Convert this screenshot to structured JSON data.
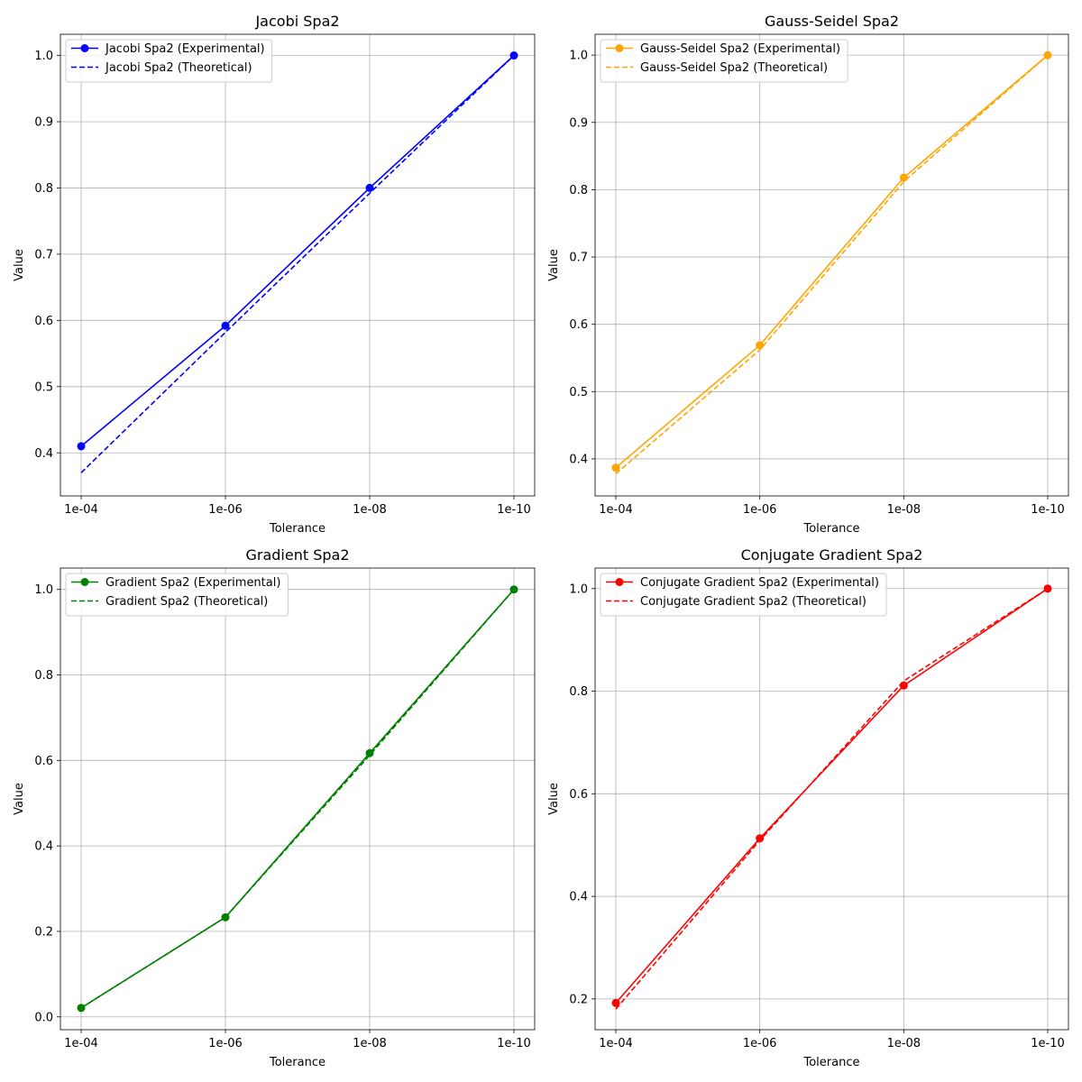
{
  "chart_data": [
    {
      "type": "line",
      "title": "Jacobi Spa2",
      "xlabel": "Tolerance",
      "ylabel": "Value",
      "categories": [
        "1e-04",
        "1e-06",
        "1e-08",
        "1e-10"
      ],
      "ylim": [
        0.335,
        1.032
      ],
      "yticks": [
        0.4,
        0.5,
        0.6,
        0.7,
        0.8,
        0.9,
        1.0
      ],
      "ytick_labels": [
        "0.4",
        "0.5",
        "0.6",
        "0.7",
        "0.8",
        "0.9",
        "1.0"
      ],
      "grid": true,
      "legend": "upper left",
      "color": "#0000ff",
      "series": [
        {
          "name": "Jacobi Spa2 (Experimental)",
          "style": "solid",
          "marker": "circle",
          "values": [
            0.41,
            0.592,
            0.8,
            1.0
          ]
        },
        {
          "name": "Jacobi Spa2 (Theoretical)",
          "style": "dashed",
          "marker": "none",
          "values": [
            0.37,
            0.582,
            0.792,
            1.0
          ]
        }
      ]
    },
    {
      "type": "line",
      "title": "Gauss-Seidel Spa2",
      "xlabel": "Tolerance",
      "ylabel": "Value",
      "categories": [
        "1e-04",
        "1e-06",
        "1e-08",
        "1e-10"
      ],
      "ylim": [
        0.345,
        1.031
      ],
      "yticks": [
        0.4,
        0.5,
        0.6,
        0.7,
        0.8,
        0.9,
        1.0
      ],
      "ytick_labels": [
        "0.4",
        "0.5",
        "0.6",
        "0.7",
        "0.8",
        "0.9",
        "1.0"
      ],
      "grid": true,
      "legend": "upper left",
      "color": "#ffa500",
      "series": [
        {
          "name": "Gauss-Seidel Spa2 (Experimental)",
          "style": "solid",
          "marker": "circle",
          "values": [
            0.387,
            0.569,
            0.818,
            1.0
          ]
        },
        {
          "name": "Gauss-Seidel Spa2 (Theoretical)",
          "style": "dashed",
          "marker": "none",
          "values": [
            0.378,
            0.562,
            0.812,
            1.0
          ]
        }
      ]
    },
    {
      "type": "line",
      "title": "Gradient Spa2",
      "xlabel": "Tolerance",
      "ylabel": "Value",
      "categories": [
        "1e-04",
        "1e-06",
        "1e-08",
        "1e-10"
      ],
      "ylim": [
        -0.03,
        1.05
      ],
      "yticks": [
        0.0,
        0.2,
        0.4,
        0.6,
        0.8,
        1.0
      ],
      "ytick_labels": [
        "0.0",
        "0.2",
        "0.4",
        "0.6",
        "0.8",
        "1.0"
      ],
      "grid": true,
      "legend": "upper left",
      "color": "#008000",
      "series": [
        {
          "name": "Gradient Spa2 (Experimental)",
          "style": "solid",
          "marker": "circle",
          "values": [
            0.021,
            0.233,
            0.617,
            1.0
          ]
        },
        {
          "name": "Gradient Spa2 (Theoretical)",
          "style": "dashed",
          "marker": "none",
          "values": [
            0.021,
            0.233,
            0.612,
            1.0
          ]
        }
      ]
    },
    {
      "type": "line",
      "title": "Conjugate Gradient Spa2",
      "xlabel": "Tolerance",
      "ylabel": "Value",
      "categories": [
        "1e-04",
        "1e-06",
        "1e-08",
        "1e-10"
      ],
      "ylim": [
        0.14,
        1.04
      ],
      "yticks": [
        0.2,
        0.4,
        0.6,
        0.8,
        1.0
      ],
      "ytick_labels": [
        "0.2",
        "0.4",
        "0.6",
        "0.8",
        "1.0"
      ],
      "grid": true,
      "legend": "upper left",
      "color": "#ff0000",
      "series": [
        {
          "name": "Conjugate Gradient Spa2 (Experimental)",
          "style": "solid",
          "marker": "circle",
          "values": [
            0.192,
            0.513,
            0.811,
            1.0
          ]
        },
        {
          "name": "Conjugate Gradient Spa2 (Theoretical)",
          "style": "dashed",
          "marker": "none",
          "values": [
            0.18,
            0.509,
            0.82,
            1.0
          ]
        }
      ]
    }
  ]
}
